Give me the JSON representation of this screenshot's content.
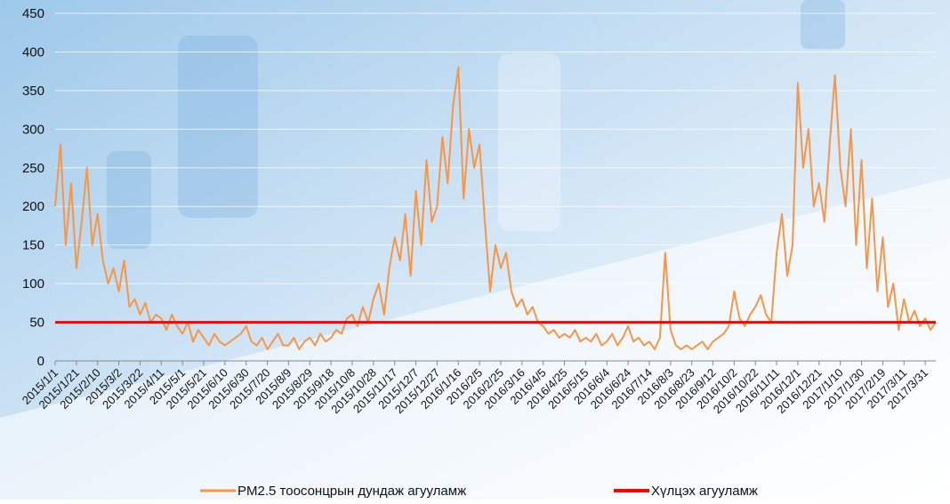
{
  "chart_data": {
    "type": "line",
    "categories": [
      "2015/1/1",
      null,
      null,
      null,
      "2015/1/21",
      null,
      null,
      null,
      "2015/2/10",
      null,
      null,
      null,
      "2015/3/2",
      null,
      null,
      null,
      "2015/3/22",
      null,
      null,
      null,
      "2015/4/11",
      null,
      null,
      null,
      "2015/5/1",
      null,
      null,
      null,
      "2015/5/21",
      null,
      null,
      null,
      "2015/6/10",
      null,
      null,
      null,
      "2015/6/30",
      null,
      null,
      null,
      "2015/7/20",
      null,
      null,
      null,
      "2015/8/9",
      null,
      null,
      null,
      "2015/8/29",
      null,
      null,
      null,
      "2015/9/18",
      null,
      null,
      null,
      "2015/10/8",
      null,
      null,
      null,
      "2015/10/28",
      null,
      null,
      null,
      "2015/11/17",
      null,
      null,
      null,
      "2015/12/7",
      null,
      null,
      null,
      "2015/12/27",
      null,
      null,
      null,
      "2016/1/16",
      null,
      null,
      null,
      "2016/2/5",
      null,
      null,
      null,
      "2016/2/25",
      null,
      null,
      null,
      "2016/3/16",
      null,
      null,
      null,
      "2016/4/5",
      null,
      null,
      null,
      "2016/4/25",
      null,
      null,
      null,
      "2016/5/15",
      null,
      null,
      null,
      "2016/6/4",
      null,
      null,
      null,
      "2016/6/24",
      null,
      null,
      null,
      "2016/7/14",
      null,
      null,
      null,
      "2016/8/3",
      null,
      null,
      null,
      "2016/8/23",
      null,
      null,
      null,
      "2016/9/12",
      null,
      null,
      null,
      "2016/10/2",
      null,
      null,
      null,
      "2016/10/22",
      null,
      null,
      null,
      "2016/11/11",
      null,
      null,
      null,
      "2016/12/1",
      null,
      null,
      null,
      "2016/12/21",
      null,
      null,
      null,
      "2017/1/10",
      null,
      null,
      null,
      "2017/1/30",
      null,
      null,
      null,
      "2017/2/19",
      null,
      null,
      null,
      "2017/3/11",
      null,
      null,
      null,
      "2017/3/31",
      null,
      null
    ],
    "series": [
      {
        "name": "PM2.5 тоосонцрын дундаж агууламж",
        "color": "#f79646",
        "width": 2,
        "values": [
          200,
          280,
          150,
          230,
          120,
          180,
          250,
          150,
          190,
          130,
          100,
          120,
          90,
          130,
          70,
          80,
          60,
          75,
          50,
          60,
          55,
          40,
          60,
          45,
          35,
          50,
          25,
          40,
          30,
          20,
          35,
          25,
          20,
          25,
          30,
          35,
          45,
          25,
          20,
          30,
          15,
          25,
          35,
          20,
          20,
          30,
          15,
          25,
          30,
          20,
          35,
          25,
          30,
          40,
          35,
          55,
          60,
          45,
          70,
          50,
          80,
          100,
          60,
          120,
          160,
          130,
          190,
          110,
          220,
          150,
          260,
          180,
          200,
          290,
          230,
          330,
          380,
          210,
          300,
          250,
          280,
          180,
          90,
          150,
          120,
          140,
          90,
          70,
          80,
          60,
          70,
          50,
          45,
          35,
          40,
          30,
          35,
          30,
          40,
          25,
          30,
          25,
          35,
          20,
          25,
          35,
          20,
          30,
          45,
          25,
          30,
          20,
          25,
          15,
          30,
          140,
          40,
          20,
          15,
          20,
          15,
          20,
          25,
          15,
          25,
          30,
          35,
          45,
          90,
          55,
          45,
          60,
          70,
          85,
          60,
          50,
          140,
          190,
          110,
          150,
          360,
          250,
          300,
          200,
          230,
          180,
          280,
          370,
          250,
          200,
          300,
          150,
          260,
          120,
          210,
          90,
          160,
          70,
          100,
          40,
          80,
          50,
          65,
          45,
          55,
          40,
          50
        ]
      },
      {
        "name": "Хүлцэх агууламж",
        "color": "#ff0000",
        "width": 3,
        "values": [
          50,
          50,
          50,
          50,
          50,
          50,
          50,
          50,
          50,
          50,
          50,
          50,
          50,
          50,
          50,
          50,
          50,
          50,
          50,
          50,
          50,
          50,
          50,
          50,
          50,
          50,
          50,
          50,
          50,
          50,
          50,
          50,
          50,
          50,
          50,
          50,
          50,
          50,
          50,
          50,
          50,
          50,
          50,
          50,
          50,
          50,
          50,
          50,
          50,
          50,
          50,
          50,
          50,
          50,
          50,
          50,
          50,
          50,
          50,
          50,
          50,
          50,
          50,
          50,
          50,
          50,
          50,
          50,
          50,
          50,
          50,
          50,
          50,
          50,
          50,
          50,
          50,
          50,
          50,
          50,
          50,
          50,
          50,
          50,
          50,
          50,
          50,
          50,
          50,
          50,
          50,
          50,
          50,
          50,
          50,
          50,
          50,
          50,
          50,
          50,
          50,
          50,
          50,
          50,
          50,
          50,
          50,
          50,
          50,
          50,
          50,
          50,
          50,
          50,
          50,
          50,
          50,
          50,
          50,
          50,
          50,
          50,
          50,
          50,
          50,
          50,
          50,
          50,
          50,
          50,
          50,
          50,
          50,
          50,
          50,
          50,
          50,
          50,
          50,
          50,
          50,
          50,
          50,
          50,
          50,
          50,
          50,
          50,
          50,
          50,
          50,
          50,
          50,
          50,
          50,
          50,
          50,
          50,
          50,
          50,
          50,
          50,
          50,
          50,
          50,
          50,
          50
        ]
      }
    ],
    "ylim": [
      0,
      450
    ],
    "yticks": [
      0,
      50,
      100,
      150,
      200,
      250,
      300,
      350,
      400,
      450
    ],
    "grid": true,
    "legend": "bottom"
  }
}
